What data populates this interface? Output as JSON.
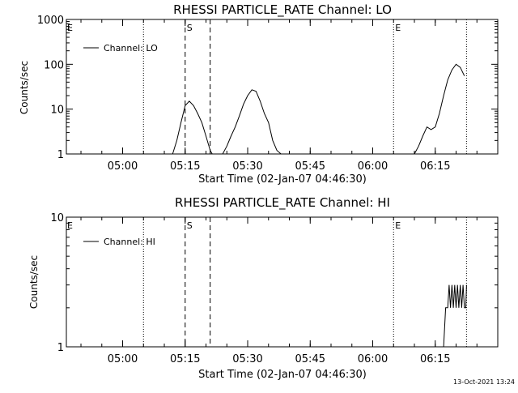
{
  "footer_timestamp": "13-Oct-2021 13:24",
  "chart_data": [
    {
      "type": "line",
      "title": "RHESSI PARTICLE_RATE Channel: LO",
      "xlabel": "Start Time (02-Jan-07 04:46:30)",
      "ylabel": "Counts/sec",
      "yscale": "log",
      "ylim": [
        1,
        1000
      ],
      "xlim": [
        "04:46:30",
        "06:30:00"
      ],
      "x_ticks": [
        "05:00",
        "05:15",
        "05:30",
        "05:45",
        "06:00",
        "06:15"
      ],
      "y_ticks": [
        "1",
        "10",
        "100",
        "1000"
      ],
      "legend": "top-left",
      "series": [
        {
          "name": "Channel: LO",
          "x": [
            "05:12:00",
            "05:13:00",
            "05:14:00",
            "05:15:00",
            "05:16:00",
            "05:17:00",
            "05:18:00",
            "05:19:00",
            "05:20:00",
            "05:21:00",
            "05:21:30",
            "05:24:00",
            "05:25:00",
            "05:26:00",
            "05:27:00",
            "05:28:00",
            "05:29:00",
            "05:30:00",
            "05:31:00",
            "05:32:00",
            "05:33:00",
            "05:34:00",
            "05:35:00",
            "05:36:00",
            "05:37:00",
            "05:38:00",
            "06:10:00",
            "06:11:00",
            "06:12:00",
            "06:13:00",
            "06:14:00",
            "06:15:00",
            "06:16:00",
            "06:17:00",
            "06:18:00",
            "06:19:00",
            "06:20:00",
            "06:21:00",
            "06:22:00"
          ],
          "values": [
            1,
            2,
            5,
            12,
            15,
            12,
            8,
            5,
            2.5,
            1.2,
            1,
            1,
            1.5,
            2.5,
            4,
            7,
            13,
            20,
            27,
            25,
            15,
            8,
            5,
            2,
            1.2,
            1,
            1,
            1.5,
            2.5,
            4,
            3.5,
            4,
            8,
            20,
            45,
            75,
            100,
            85,
            55
          ]
        }
      ],
      "vlines": [
        {
          "x": "05:05:00",
          "style": "dotted",
          "label": ""
        },
        {
          "x": "05:15:00",
          "style": "dashed",
          "label": "S"
        },
        {
          "x": "05:21:00",
          "style": "dashed",
          "label": ""
        },
        {
          "x": "06:05:00",
          "style": "dotted",
          "label": "E"
        },
        {
          "x": "06:22:30",
          "style": "dotted",
          "label": ""
        }
      ],
      "edge_labels": [
        "E"
      ]
    },
    {
      "type": "line",
      "title": "RHESSI PARTICLE_RATE Channel: HI",
      "xlabel": "Start Time (02-Jan-07 04:46:30)",
      "ylabel": "Counts/sec",
      "yscale": "log",
      "ylim": [
        1,
        10
      ],
      "xlim": [
        "04:46:30",
        "06:30:00"
      ],
      "x_ticks": [
        "05:00",
        "05:15",
        "05:30",
        "05:45",
        "06:00",
        "06:15"
      ],
      "y_ticks": [
        "1",
        "10"
      ],
      "legend": "top-left",
      "series": [
        {
          "name": "Channel: HI",
          "x": [
            "06:17:00",
            "06:17:30",
            "06:18:00",
            "06:18:20",
            "06:18:40",
            "06:19:00",
            "06:19:20",
            "06:19:40",
            "06:20:00",
            "06:20:20",
            "06:20:40",
            "06:21:00",
            "06:21:20",
            "06:21:40",
            "06:22:00",
            "06:22:20",
            "06:22:30"
          ],
          "values": [
            1,
            2,
            2,
            3,
            2,
            3,
            2,
            3,
            2,
            3,
            2,
            3,
            2,
            3,
            2,
            2,
            3
          ]
        }
      ],
      "vlines": [
        {
          "x": "05:05:00",
          "style": "dotted",
          "label": ""
        },
        {
          "x": "05:15:00",
          "style": "dashed",
          "label": "S"
        },
        {
          "x": "05:21:00",
          "style": "dashed",
          "label": ""
        },
        {
          "x": "06:05:00",
          "style": "dotted",
          "label": "E"
        },
        {
          "x": "06:22:30",
          "style": "dotted",
          "label": ""
        }
      ],
      "edge_labels": [
        "E"
      ]
    }
  ]
}
